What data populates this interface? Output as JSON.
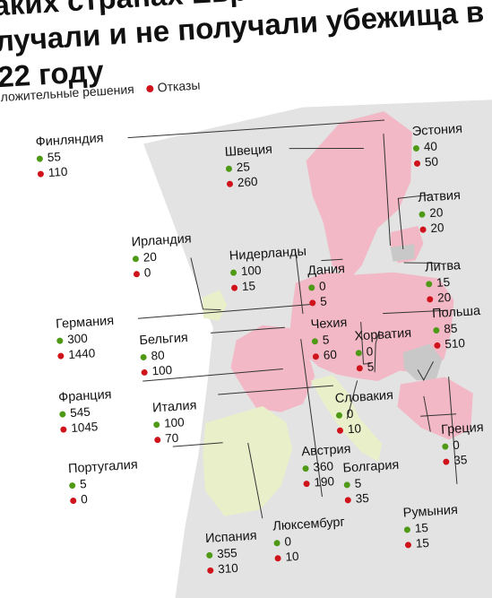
{
  "title_lines": [
    "аких странах Европы",
    "лучали и не получали убежища в",
    "22 году"
  ],
  "legend": {
    "positive": "ложительные решения",
    "refusals": "Отказы"
  },
  "colors": {
    "positive": "#4e9a16",
    "refusals": "#d0121b",
    "sea": "#ffffff",
    "map_grey": "#e3e3e3",
    "map_pink": "#f2b8c6",
    "map_green": "#e9f0c9",
    "map_dark": "#c8c8c8"
  },
  "countries": [
    {
      "name": "Финляндия",
      "positive": "55",
      "refusals": "110"
    },
    {
      "name": "Швеция",
      "positive": "25",
      "refusals": "260"
    },
    {
      "name": "Эстония",
      "positive": "40",
      "refusals": "50"
    },
    {
      "name": "Латвия",
      "positive": "20",
      "refusals": "20"
    },
    {
      "name": "Ирландия",
      "positive": "20",
      "refusals": "0"
    },
    {
      "name": "Нидерланды",
      "positive": "100",
      "refusals": "15"
    },
    {
      "name": "Дания",
      "positive": "0",
      "refusals": "5"
    },
    {
      "name": "Литва",
      "positive": "15",
      "refusals": "20"
    },
    {
      "name": "Германия",
      "positive": "300",
      "refusals": "1440"
    },
    {
      "name": "Бельгия",
      "positive": "80",
      "refusals": "100"
    },
    {
      "name": "Чехия",
      "positive": "5",
      "refusals": "60"
    },
    {
      "name": "Хорватия",
      "positive": "0",
      "refusals": "5"
    },
    {
      "name": "Польша",
      "positive": "85",
      "refusals": "510"
    },
    {
      "name": "Франция",
      "positive": "545",
      "refusals": "1045"
    },
    {
      "name": "Италия",
      "positive": "100",
      "refusals": "70"
    },
    {
      "name": "Словакия",
      "positive": "0",
      "refusals": "10"
    },
    {
      "name": "Португалия",
      "positive": "5",
      "refusals": "0"
    },
    {
      "name": "Австрия",
      "positive": "360",
      "refusals": "190"
    },
    {
      "name": "Греция",
      "positive": "0",
      "refusals": "35"
    },
    {
      "name": "Болгария",
      "positive": "5",
      "refusals": "35"
    },
    {
      "name": "Румыния",
      "positive": "15",
      "refusals": "15"
    },
    {
      "name": "Испания",
      "positive": "355",
      "refusals": "310"
    },
    {
      "name": "Люксембург",
      "positive": "0",
      "refusals": "10"
    }
  ]
}
